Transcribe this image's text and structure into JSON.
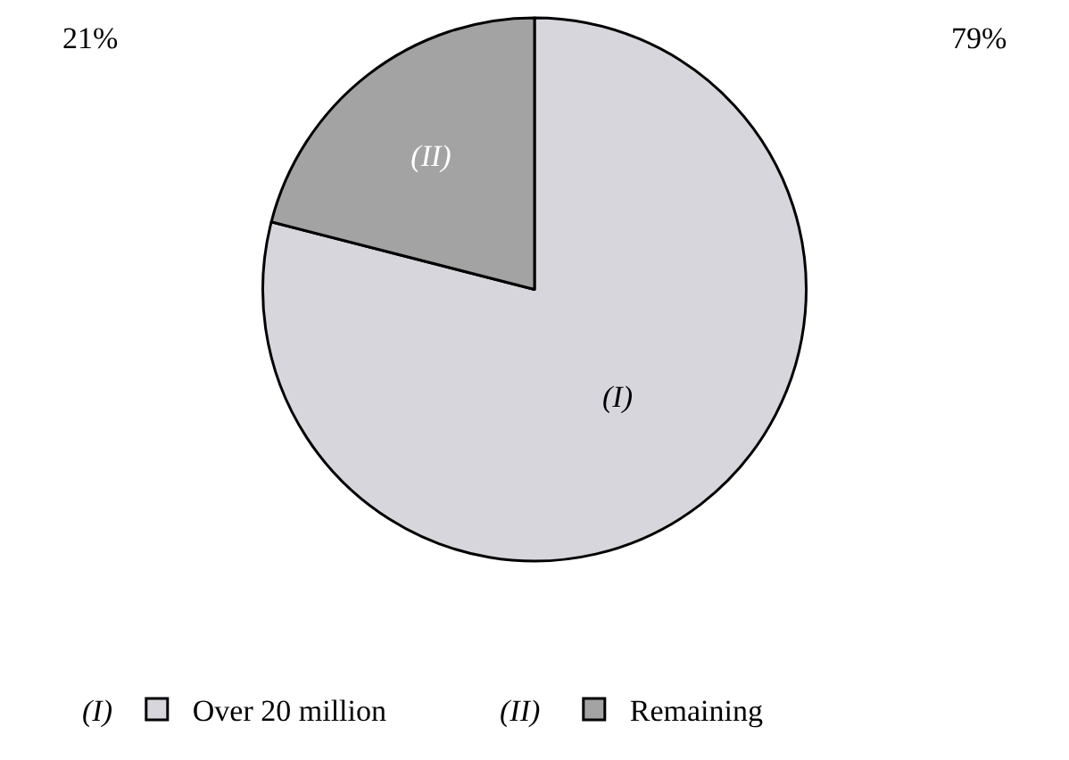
{
  "chart_data": {
    "type": "pie",
    "categories": [
      "Over 20 million",
      "Remaining"
    ],
    "values": [
      79,
      21
    ],
    "colors": [
      "#d6d6dc",
      "#a3a3a3"
    ],
    "value_labels": [
      "79%",
      "21%"
    ],
    "annotations": [
      "(I)",
      "(II)"
    ],
    "legend": "bottom"
  }
}
